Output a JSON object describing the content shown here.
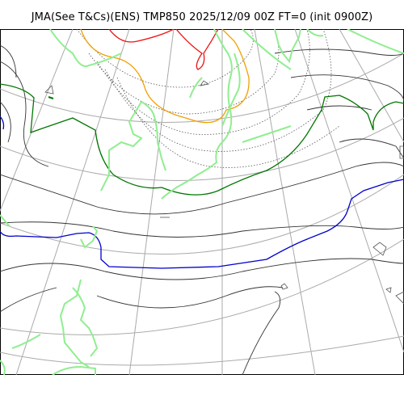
{
  "title": "JMA(See T&Cs)(ENS) TMP850 2025/12/09 00Z FT=0 (init 0900Z)",
  "legend_colors": {
    "coastline": "#90ee90",
    "graticule": "#a9a9a9",
    "isotherm_black": "#333333",
    "isotherm_blue": "#0000cc",
    "isotherm_green": "#007700",
    "isotherm_orange": "#f0a000",
    "isotherm_red": "#ee1111"
  }
}
